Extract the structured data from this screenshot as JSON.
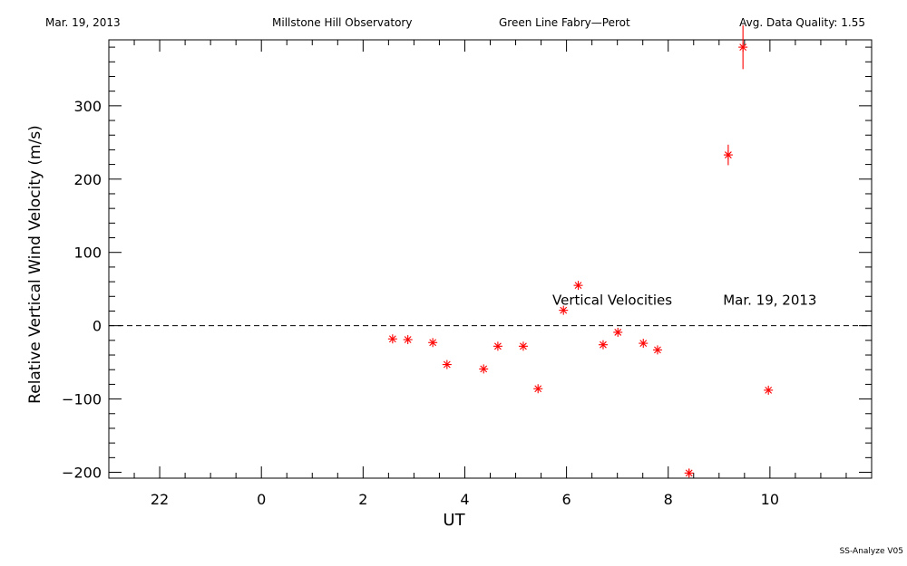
{
  "header": {
    "date": "Mar. 19, 2013",
    "observatory": "Millstone Hill Observatory",
    "instrument": "Green Line Fabry—Perot",
    "quality": "Avg. Data Quality: 1.55"
  },
  "footer": {
    "version": "SS-Analyze V05"
  },
  "chart_data": {
    "type": "scatter",
    "xlabel": "UT",
    "ylabel": "Relative Vertical Wind Velocity (m/s)",
    "xlim": [
      21,
      36
    ],
    "ylim": [
      -208,
      390
    ],
    "x_ticks": [
      22,
      24,
      26,
      28,
      30,
      32,
      34
    ],
    "x_tick_labels": [
      "22",
      "0",
      "2",
      "4",
      "6",
      "8",
      "10"
    ],
    "y_ticks": [
      -200,
      -100,
      0,
      100,
      200,
      300
    ],
    "y_tick_labels": [
      "−200",
      "−100",
      "0",
      "100",
      "200",
      "300"
    ],
    "zero_line": true,
    "marker": "asterisk",
    "color": "#ff0000",
    "annotations": [
      {
        "text": "Vertical Velocities",
        "x": 30.9,
        "y": 36
      },
      {
        "text": "Mar. 19, 2013",
        "x": 34.0,
        "y": 36
      }
    ],
    "points": [
      {
        "x": 26.58,
        "y": -18,
        "err": 0
      },
      {
        "x": 26.88,
        "y": -19,
        "err": 0
      },
      {
        "x": 27.37,
        "y": -23,
        "err": 0
      },
      {
        "x": 27.65,
        "y": -53,
        "err": 0
      },
      {
        "x": 28.37,
        "y": -59,
        "err": 0
      },
      {
        "x": 28.65,
        "y": -28,
        "err": 0
      },
      {
        "x": 29.15,
        "y": -28,
        "err": 0
      },
      {
        "x": 29.44,
        "y": -86,
        "err": 0
      },
      {
        "x": 29.94,
        "y": 21,
        "err": 0
      },
      {
        "x": 30.23,
        "y": 55,
        "err": 0
      },
      {
        "x": 30.72,
        "y": -26,
        "err": 0
      },
      {
        "x": 31.01,
        "y": -9,
        "err": 0
      },
      {
        "x": 31.51,
        "y": -24,
        "err": 0
      },
      {
        "x": 31.79,
        "y": -33,
        "err": 0
      },
      {
        "x": 32.41,
        "y": -201,
        "err": 5
      },
      {
        "x": 33.18,
        "y": 233,
        "err": 14
      },
      {
        "x": 33.47,
        "y": 380,
        "err": 30
      },
      {
        "x": 33.97,
        "y": -88,
        "err": 0
      }
    ]
  }
}
